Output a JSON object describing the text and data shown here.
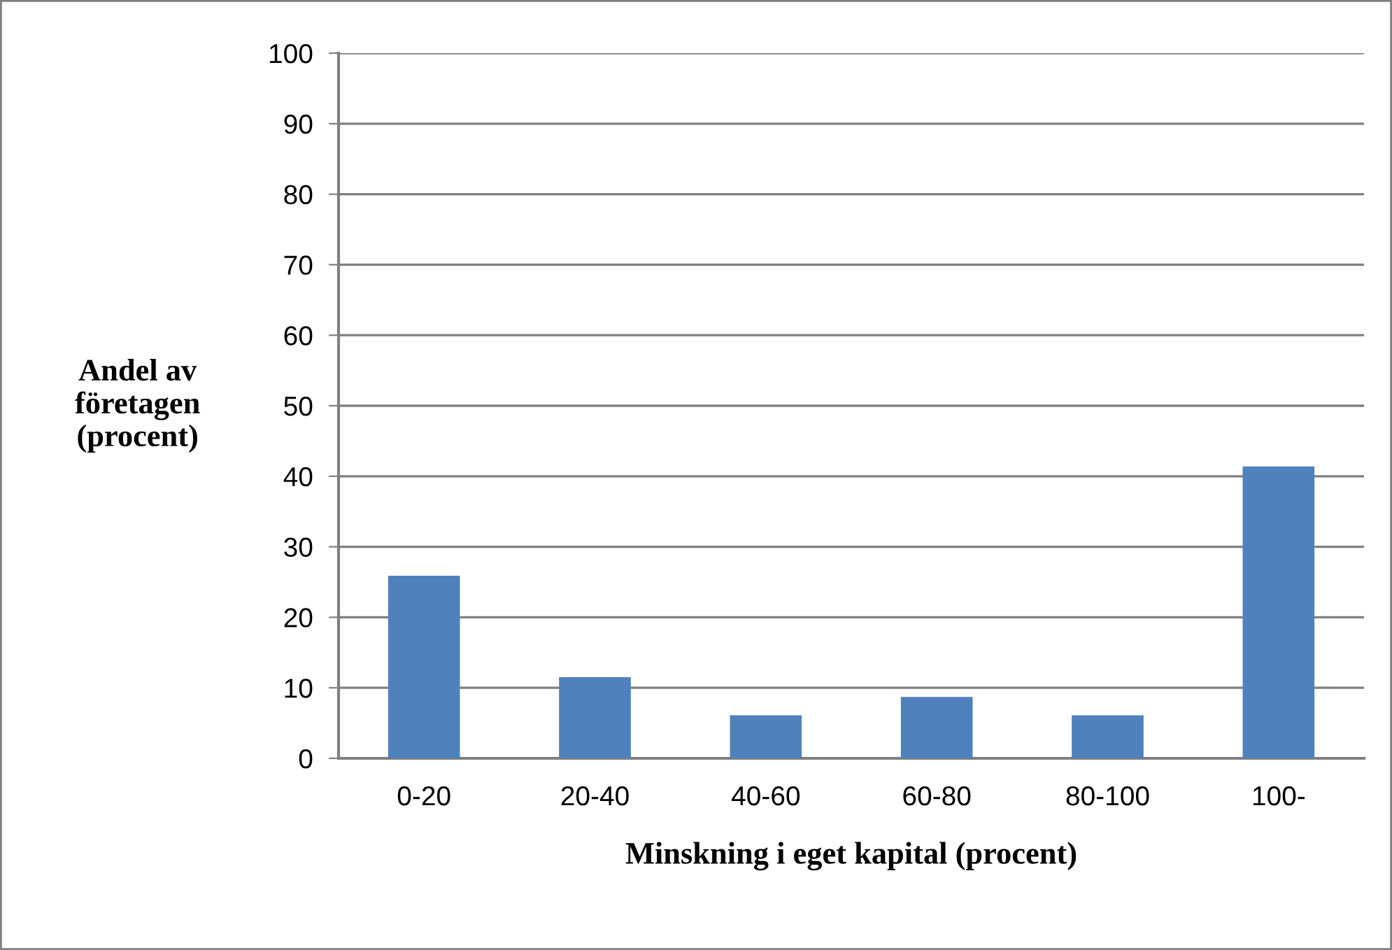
{
  "chart_data": {
    "type": "bar",
    "xlabel": "Minskning i eget kapital (procent)",
    "ylabel": "Andel av\nföretagen\n(procent)",
    "categories": [
      "0-20",
      "20-40",
      "40-60",
      "60-80",
      "80-100",
      "100-"
    ],
    "values": [
      25.9,
      11.5,
      6.1,
      8.7,
      6.1,
      41.4
    ],
    "color": "#4f81bd",
    "ylim": [
      0,
      100
    ],
    "yticks": [
      0,
      10,
      20,
      30,
      40,
      50,
      60,
      70,
      80,
      90,
      100
    ],
    "grid": "y",
    "legend": false
  }
}
